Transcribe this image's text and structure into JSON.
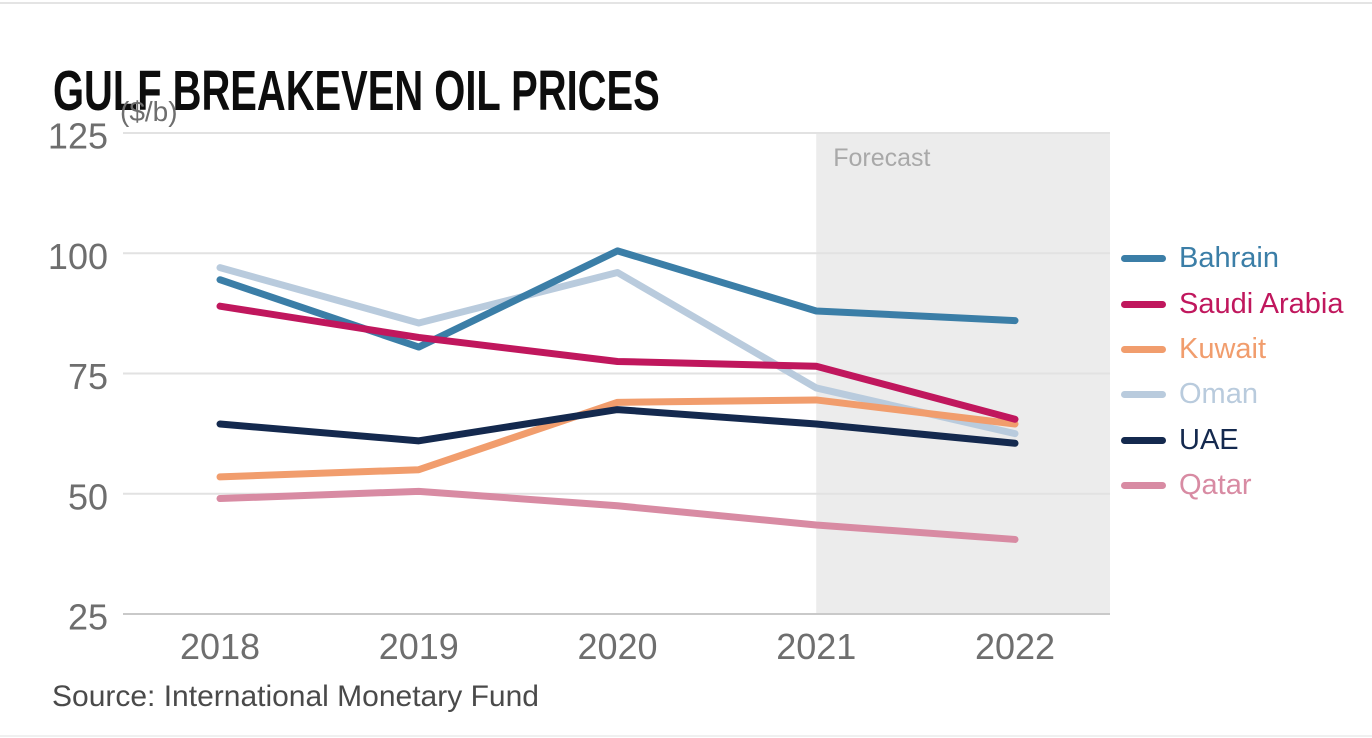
{
  "title": "GULF BREAKEVEN OIL PRICES",
  "unit_label": "($/b)",
  "forecast_label": "Forecast",
  "source": "Source: International Monetary Fund",
  "colors": {
    "background": "#ffffff",
    "forecast_band": "#ececec",
    "gridline": "#e2e2e2",
    "axis_line": "#c9c9c9",
    "tick_text": "#6e6e6e",
    "forecast_text": "#a9a9a9",
    "title_text": "#0d0d0d",
    "source_text": "#4a4a4a"
  },
  "chart_data": {
    "type": "line",
    "title": "GULF BREAKEVEN OIL PRICES",
    "ylabel": "($/b)",
    "x": [
      2018,
      2019,
      2020,
      2021,
      2022
    ],
    "xticklabels": [
      "2018",
      "2019",
      "2020",
      "2021",
      "2022"
    ],
    "ylim": [
      25,
      125
    ],
    "yticks": [
      25,
      50,
      75,
      100,
      125
    ],
    "yticklabels": [
      "25",
      "50",
      "75",
      "100",
      "125"
    ],
    "grid": true,
    "legend_position": "right",
    "forecast_region": {
      "label": "Forecast",
      "x_start": 2021,
      "x_end": 2022
    },
    "series": [
      {
        "name": "Bahrain",
        "color": "#3b7ea7",
        "values": [
          94.5,
          80.5,
          100.5,
          88.0,
          86.0
        ]
      },
      {
        "name": "Saudi Arabia",
        "color": "#c0175d",
        "values": [
          89.0,
          82.5,
          77.5,
          76.5,
          65.5
        ]
      },
      {
        "name": "Kuwait",
        "color": "#f19d6d",
        "values": [
          53.5,
          55.0,
          69.0,
          69.5,
          64.5
        ]
      },
      {
        "name": "Oman",
        "color": "#b9cbdd",
        "values": [
          97.0,
          85.5,
          96.0,
          72.0,
          62.5
        ]
      },
      {
        "name": "UAE",
        "color": "#14294e",
        "values": [
          64.5,
          61.0,
          67.5,
          64.5,
          60.5
        ]
      },
      {
        "name": "Qatar",
        "color": "#d88ba3",
        "values": [
          49.0,
          50.5,
          47.5,
          43.5,
          40.5
        ]
      }
    ]
  }
}
